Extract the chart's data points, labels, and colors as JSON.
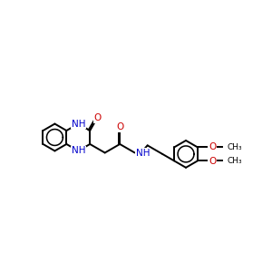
{
  "background_color": "#ffffff",
  "bond_color": "#000000",
  "N_color": "#0000cc",
  "O_color": "#cc0000",
  "figsize": [
    3.0,
    3.0
  ],
  "dpi": 100,
  "xlim": [
    -0.5,
    9.5
  ],
  "ylim": [
    -1.8,
    2.5
  ],
  "bond_lw": 1.4,
  "font_size": 7.5
}
